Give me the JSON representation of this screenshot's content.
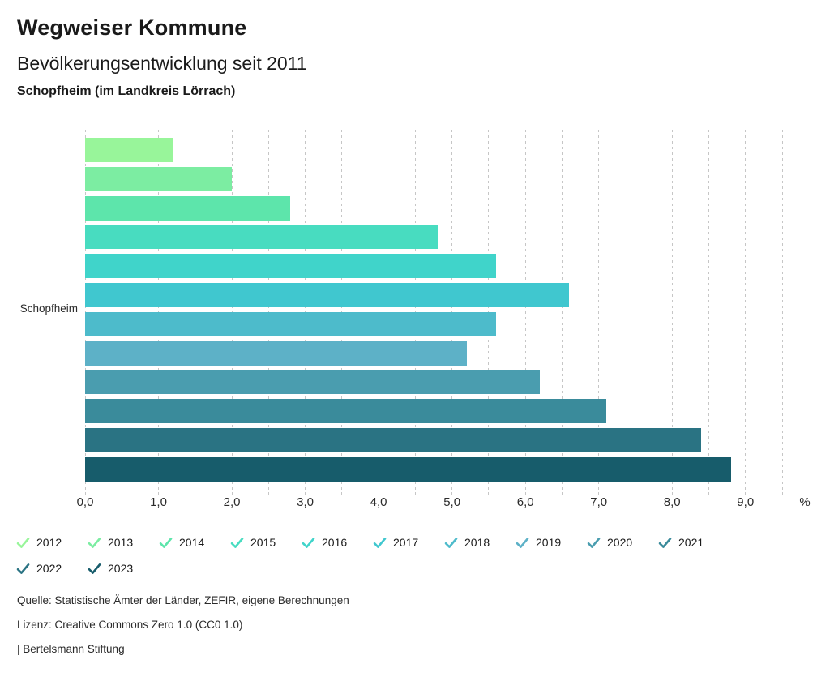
{
  "header": {
    "title": "Wegweiser Kommune",
    "subtitle": "Bevölkerungsentwicklung seit 2011",
    "region": "Schopfheim (im Landkreis Lörrach)"
  },
  "chart_data": {
    "type": "bar",
    "orientation": "horizontal",
    "title": "Bevölkerungsentwicklung seit 2011",
    "category_label": "Schopfheim",
    "series": [
      {
        "name": "2012",
        "value": 1.2,
        "color": "#98F59A"
      },
      {
        "name": "2013",
        "value": 2.0,
        "color": "#7CEDA2"
      },
      {
        "name": "2014",
        "value": 2.8,
        "color": "#5DE5AB"
      },
      {
        "name": "2015",
        "value": 4.8,
        "color": "#48DCC0"
      },
      {
        "name": "2016",
        "value": 5.6,
        "color": "#40D4CA"
      },
      {
        "name": "2017",
        "value": 6.6,
        "color": "#40C7CF"
      },
      {
        "name": "2018",
        "value": 5.6,
        "color": "#4DBBCB"
      },
      {
        "name": "2019",
        "value": 5.2,
        "color": "#5DB1C7"
      },
      {
        "name": "2020",
        "value": 6.2,
        "color": "#4A9DAF"
      },
      {
        "name": "2021",
        "value": 7.1,
        "color": "#3A8B9B"
      },
      {
        "name": "2022",
        "value": 8.4,
        "color": "#2A7383"
      },
      {
        "name": "2023",
        "value": 8.8,
        "color": "#175C6B"
      }
    ],
    "xlim": [
      0,
      9.5
    ],
    "grid_step": 0.5,
    "grid": true,
    "x_tick_values": [
      0,
      1,
      2,
      3,
      4,
      5,
      6,
      7,
      8,
      9
    ],
    "x_tick_labels": [
      "0,0",
      "1,0",
      "2,0",
      "3,0",
      "4,0",
      "5,0",
      "6,0",
      "7,0",
      "8,0",
      "9,0"
    ],
    "unit_label": "%",
    "legend_position": "bottom",
    "legend_icon": "check-icon"
  },
  "footer": {
    "source": "Quelle: Statistische Ämter der Länder, ZEFIR, eigene Berechnungen",
    "license": "Lizenz: Creative Commons Zero 1.0 (CC0 1.0)",
    "attribution": "| Bertelsmann Stiftung"
  }
}
